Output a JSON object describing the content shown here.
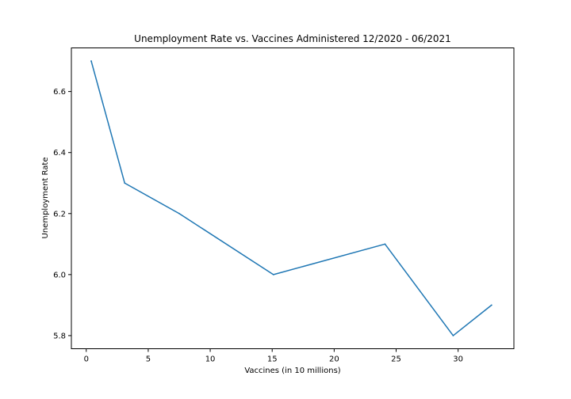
{
  "chart_data": {
    "type": "line",
    "title": "Unemployment Rate vs. Vaccines Administered 12/2020 - 06/2021",
    "xlabel": "Vaccines (in 10 millions)",
    "ylabel": "Unemployment Rate",
    "xlim": [
      -1.2,
      34.5
    ],
    "ylim": [
      5.757,
      6.743
    ],
    "xticks": [
      0,
      5,
      10,
      15,
      20,
      25,
      30
    ],
    "yticks": [
      5.8,
      6.0,
      6.2,
      6.4,
      6.6
    ],
    "ytick_labels": [
      "5.8",
      "6.0",
      "6.2",
      "6.4",
      "6.6"
    ],
    "grid": false,
    "line_color": "#1f77b4",
    "series": [
      {
        "x": [
          0.4,
          3.1,
          7.5,
          15.1,
          24.1,
          29.6,
          32.7
        ],
        "y": [
          6.7,
          6.3,
          6.2,
          6.0,
          6.1,
          5.8,
          5.9
        ]
      }
    ]
  }
}
